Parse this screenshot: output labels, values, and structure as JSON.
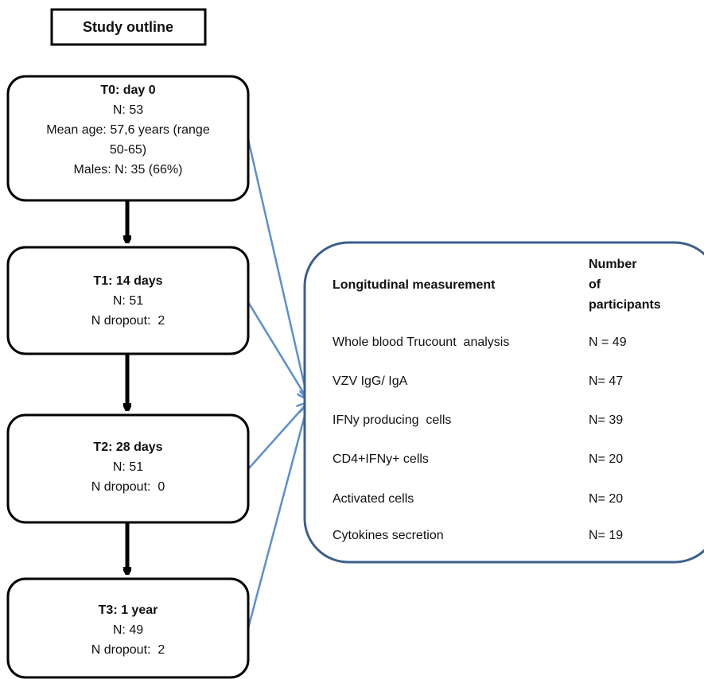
{
  "title": "Study outline",
  "nodes": [
    {
      "lines": [
        "T0: day 0",
        "N: 53",
        "Mean age: 57,6 years (range",
        "50-65)",
        "Males: N: 35 (66%)"
      ]
    },
    {
      "lines": [
        "T1: 14 days",
        "N: 51",
        "N dropout:  2"
      ]
    },
    {
      "lines": [
        "T2: 28 days",
        "N: 51",
        "N dropout:  0"
      ]
    },
    {
      "lines": [
        "T3: 1 year",
        "N: 49",
        "N dropout:  2"
      ]
    }
  ],
  "table": {
    "header": [
      "Longitudinal measurement",
      [
        "Number",
        "of",
        "participants"
      ]
    ],
    "rows": [
      [
        "Whole blood Trucount  analysis",
        "N = 49"
      ],
      [
        "VZV IgG/ IgA",
        "N= 47"
      ],
      [
        "IFNy producing  cells",
        "N= 39"
      ],
      [
        "CD4+IFNy+ cells",
        "N= 20"
      ],
      [
        "Activated cells",
        "N= 20"
      ],
      [
        "Cytokines secretion",
        "N= 19"
      ]
    ]
  }
}
